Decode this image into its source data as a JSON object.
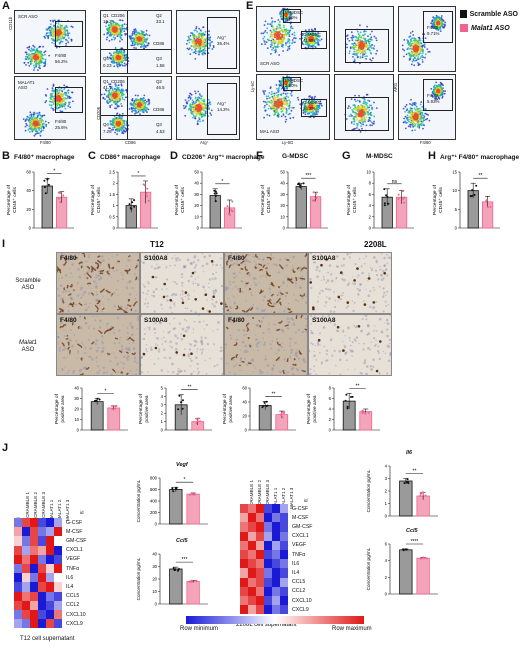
{
  "panels": {
    "A": "A",
    "E": "E",
    "B": "B",
    "C": "C",
    "D": "D",
    "F": "F",
    "G": "G",
    "H": "H",
    "I": "I",
    "J": "J"
  },
  "legend": {
    "items": [
      {
        "label": "Scramble ASO",
        "color": "#111111"
      },
      {
        "label": "Malat1 ASO",
        "color": "#f0648c"
      }
    ]
  },
  "flow_a": {
    "row1_label": "SCR ASO",
    "row2_label_line1": "MALAT1",
    "row2_label_line2": "ASO",
    "row1_f480": "F4/80",
    "row1_f480_val": "56.2%",
    "row2_f480": "F4/80",
    "row2_f480_val": "25.6%",
    "y1": "CD11b",
    "x1": "F4/80",
    "y2": "CD206",
    "x2": "CD86",
    "x3": "Arg⁺",
    "row1_q": [
      "Q1",
      "CD206",
      "Q2",
      "CD86",
      "Q4",
      "Q3"
    ],
    "row1_qv": [
      "16.2",
      "33.1",
      "0.23",
      "1.56"
    ],
    "row2_q": [
      "Q1",
      "CD206",
      "Q2",
      "CD86",
      "Q4",
      "Q3"
    ],
    "row2_qv": [
      "41.7",
      "46.5",
      "7.26",
      "4.53"
    ],
    "row1_arg": "Arg⁺",
    "row1_arg_val": "35.4%",
    "row2_arg": "Arg⁺",
    "row2_arg_val": "14.2%"
  },
  "flow_e": {
    "row1_label": "SCR ASO",
    "row2_label": "MAL ASO",
    "mmdsc": "M-MDSC",
    "mmdsc1": "3.65%",
    "mmdsc2": "3.90%",
    "gmdsc": "G-MDSC",
    "gmdsc1": "41.8%",
    "gmdsc2": "26.2%",
    "f480": "F4/80",
    "f480_1": "9.71%",
    "f480_2": "5.93%",
    "y": "Ly-6C",
    "x": "Ly-6G",
    "y3": "ARG",
    "x3": "F4/80"
  },
  "bar_titles": {
    "B": "F4/80⁺ macrophage",
    "C": "CD86⁺ macrophage",
    "D": "CD206⁺ Arg⁺¹ macrophage",
    "F": "G-MDSC",
    "G": "M-MDSC",
    "H": "Arg⁺¹ F4/80⁺ macrophage"
  },
  "bar_ylabel": [
    "Percentage of",
    "CD45⁺ cells"
  ],
  "ihc": {
    "t12": "T12",
    "l2208": "2208L",
    "row1": [
      "Scramble",
      "ASO"
    ],
    "row2": [
      "Malat1",
      "ASO"
    ],
    "f480": "F4/80",
    "s100a8": "S100A8",
    "ylabel": [
      "Percentage of",
      "positive area"
    ]
  },
  "heatmap": {
    "id": "id",
    "cols": [
      "SCRAMBLE 1",
      "SCRAMBLE 2",
      "SCRAMBLE 3",
      "MALAT1 1",
      "MALAT1 2",
      "MALAT1 3"
    ],
    "cytokines": [
      "G-CSF",
      "M-CSF",
      "GM-CSF",
      "CXCL1",
      "VEGF",
      "TNFα",
      "IL6",
      "IL4",
      "CCL5",
      "CCL2",
      "CXCL10",
      "CXCL9"
    ],
    "t12_caption": "T12 cell supernatant",
    "l2208_caption": "2208L cell supernatant",
    "scale_min": "Row minimum",
    "scale_max": "Row maximum"
  },
  "conc_titles": {
    "vegf": "Vegf",
    "ccl5a": "Ccl5",
    "il6": "Il6",
    "ccl5b": "Ccl5"
  },
  "conc_ylabel": "Concentration pg/mL",
  "chart_data": [
    {
      "panel": "B",
      "type": "bar",
      "categories": [
        "Scramble ASO",
        "Malat1 ASO"
      ],
      "values": [
        45,
        33
      ],
      "errors": [
        8,
        6
      ],
      "ylim": [
        0,
        60
      ],
      "yticks": [
        0,
        20,
        40,
        60
      ],
      "significance": "*"
    },
    {
      "panel": "C",
      "type": "bar",
      "categories": [
        "Scramble ASO",
        "Malat1 ASO"
      ],
      "values": [
        1.0,
        1.6
      ],
      "errors": [
        0.3,
        0.5
      ],
      "ylim": [
        0,
        2.5
      ],
      "yticks": [
        0.0,
        0.5,
        1.0,
        1.5,
        2.0,
        2.5
      ],
      "significance": "*"
    },
    {
      "panel": "D",
      "type": "bar",
      "categories": [
        "Scramble ASO",
        "Malat1 ASO"
      ],
      "values": [
        29,
        18
      ],
      "errors": [
        6,
        7
      ],
      "ylim": [
        0,
        50
      ],
      "yticks": [
        0,
        10,
        20,
        30,
        40,
        50
      ],
      "significance": "*"
    },
    {
      "panel": "F",
      "type": "bar",
      "categories": [
        "Scramble ASO",
        "Malat1 ASO"
      ],
      "values": [
        37,
        28
      ],
      "errors": [
        3,
        4
      ],
      "ylim": [
        0,
        50
      ],
      "yticks": [
        0,
        10,
        20,
        30,
        40,
        50
      ],
      "significance": "***"
    },
    {
      "panel": "G",
      "type": "bar",
      "categories": [
        "Scramble ASO",
        "Malat1 ASO"
      ],
      "values": [
        5.5,
        5.5
      ],
      "errors": [
        1.5,
        1.2
      ],
      "ylim": [
        0,
        10
      ],
      "yticks": [
        0,
        2,
        4,
        6,
        8,
        10
      ],
      "significance": "ns"
    },
    {
      "panel": "H",
      "type": "bar",
      "categories": [
        "Scramble ASO",
        "Malat1 ASO"
      ],
      "values": [
        10,
        7
      ],
      "errors": [
        2,
        1.5
      ],
      "ylim": [
        0,
        15
      ],
      "yticks": [
        0,
        5,
        10,
        15
      ],
      "significance": "**"
    },
    {
      "panel": "I-T12-F4/80",
      "type": "bar",
      "categories": [
        "Scramble ASO",
        "Malat1 ASO"
      ],
      "values": [
        27,
        21
      ],
      "errors": [
        3,
        2
      ],
      "ylim": [
        0,
        40
      ],
      "yticks": [
        0,
        10,
        20,
        30,
        40
      ],
      "significance": "*"
    },
    {
      "panel": "I-T12-S100A8",
      "type": "bar",
      "categories": [
        "Scramble ASO",
        "Malat1 ASO"
      ],
      "values": [
        3.0,
        1.0
      ],
      "errors": [
        1.2,
        0.4
      ],
      "ylim": [
        0,
        5
      ],
      "yticks": [
        0,
        1,
        2,
        3,
        4,
        5
      ],
      "significance": "**"
    },
    {
      "panel": "I-2208L-F4/80",
      "type": "bar",
      "categories": [
        "Scramble ASO",
        "Malat1 ASO"
      ],
      "values": [
        35,
        22
      ],
      "errors": [
        6,
        5
      ],
      "ylim": [
        0,
        60
      ],
      "yticks": [
        0,
        20,
        40,
        60
      ],
      "significance": "**"
    },
    {
      "panel": "I-2208L-S100A8",
      "type": "bar",
      "categories": [
        "Scramble ASO",
        "Malat1 ASO"
      ],
      "values": [
        5.5,
        3.5
      ],
      "errors": [
        1.5,
        0.5
      ],
      "ylim": [
        0,
        8
      ],
      "yticks": [
        0,
        2,
        4,
        6,
        8
      ],
      "significance": "**"
    },
    {
      "panel": "J-T12-Vegf",
      "type": "bar",
      "categories": [
        "Scramble ASO",
        "Malat1 ASO"
      ],
      "values": [
        600,
        520
      ],
      "errors": [
        40,
        20
      ],
      "ylim": [
        0,
        800
      ],
      "yticks": [
        0,
        200,
        400,
        600,
        800
      ],
      "significance": "*"
    },
    {
      "panel": "J-T12-Ccl5",
      "type": "bar",
      "categories": [
        "Scramble ASO",
        "Malat1 ASO"
      ],
      "values": [
        28,
        18
      ],
      "errors": [
        1.5,
        0.8
      ],
      "ylim": [
        0,
        40
      ],
      "yticks": [
        0,
        10,
        20,
        30,
        40
      ],
      "significance": "***"
    },
    {
      "panel": "J-2208L-Il6",
      "type": "bar",
      "categories": [
        "Scramble ASO",
        "Malat1 ASO"
      ],
      "values": [
        2.8,
        1.6
      ],
      "errors": [
        0.2,
        0.3
      ],
      "ylim": [
        0,
        4
      ],
      "yticks": [
        0,
        1,
        2,
        3,
        4
      ],
      "significance": "**"
    },
    {
      "panel": "J-2208L-Ccl5",
      "type": "bar",
      "categories": [
        "Scramble ASO",
        "Malat1 ASO"
      ],
      "values": [
        5.3,
        4.3
      ],
      "errors": [
        0.1,
        0.1
      ],
      "ylim": [
        0,
        6
      ],
      "yticks": [
        0,
        2,
        4,
        6
      ],
      "significance": "****"
    },
    {
      "panel": "J-T12-heatmap",
      "type": "heatmap",
      "rows": [
        "G-CSF",
        "M-CSF",
        "GM-CSF",
        "CXCL1",
        "VEGF",
        "TNFα",
        "IL6",
        "IL4",
        "CCL5",
        "CCL2",
        "CXCL10",
        "CXCL9"
      ],
      "cols": [
        "SCRAMBLE 1",
        "SCRAMBLE 2",
        "SCRAMBLE 3",
        "MALAT1 1",
        "MALAT1 2",
        "MALAT1 3"
      ],
      "values": [
        [
          0.2,
          0.9,
          1.0,
          0.1,
          0.0,
          0.3
        ],
        [
          0.7,
          0.0,
          0.9,
          0.2,
          0.3,
          1.0
        ],
        [
          0.6,
          0.2,
          0.9,
          0.1,
          1.0,
          0.5
        ],
        [
          0.9,
          0.3,
          0.8,
          0.7,
          1.0,
          0.0
        ],
        [
          1.0,
          0.8,
          1.0,
          0.2,
          0.0,
          0.1
        ],
        [
          0.2,
          0.9,
          0.0,
          0.9,
          0.6,
          1.0
        ],
        [
          0.0,
          0.6,
          0.2,
          1.0,
          0.3,
          0.5
        ],
        [
          0.1,
          0.3,
          0.0,
          0.9,
          1.0,
          0.6
        ],
        [
          1.0,
          0.8,
          0.9,
          0.0,
          0.2,
          0.1
        ],
        [
          0.9,
          1.0,
          0.7,
          0.0,
          0.1,
          0.3
        ],
        [
          0.2,
          0.9,
          1.0,
          0.1,
          0.0,
          0.8
        ],
        [
          0.3,
          0.2,
          1.0,
          0.0,
          0.9,
          0.1
        ]
      ]
    },
    {
      "panel": "J-2208L-heatmap",
      "type": "heatmap",
      "rows": [
        "G-CSF",
        "M-CSF",
        "GM-CSF",
        "CXCL1",
        "VEGF",
        "TNFα",
        "IL6",
        "IL4",
        "CCL5",
        "CCL2",
        "CXCL10",
        "CXCL9"
      ],
      "cols": [
        "SCRAMBLE 1",
        "SCRAMBLE 2",
        "SCRAMBLE 3",
        "MALAT1 1",
        "MALAT1 2",
        "MALAT1 3"
      ],
      "values": [
        [
          0.9,
          0.8,
          1.0,
          0.1,
          0.0,
          0.3
        ],
        [
          0.7,
          1.0,
          0.8,
          0.0,
          0.2,
          0.1
        ],
        [
          0.8,
          0.9,
          1.0,
          0.2,
          0.0,
          0.1
        ],
        [
          1.0,
          0.7,
          0.9,
          0.3,
          0.0,
          0.2
        ],
        [
          0.8,
          1.0,
          0.7,
          0.0,
          0.3,
          0.1
        ],
        [
          0.9,
          0.8,
          1.0,
          0.1,
          0.2,
          0.0
        ],
        [
          1.0,
          0.9,
          0.8,
          0.0,
          0.1,
          0.2
        ],
        [
          0.7,
          1.0,
          0.9,
          0.2,
          0.0,
          0.1
        ],
        [
          1.0,
          0.8,
          0.9,
          0.1,
          0.0,
          0.3
        ],
        [
          0.9,
          1.0,
          0.8,
          0.0,
          0.2,
          0.1
        ],
        [
          0.8,
          0.9,
          1.0,
          0.1,
          0.3,
          0.0
        ],
        [
          1.0,
          0.7,
          0.9,
          0.0,
          0.2,
          0.1
        ]
      ]
    }
  ]
}
